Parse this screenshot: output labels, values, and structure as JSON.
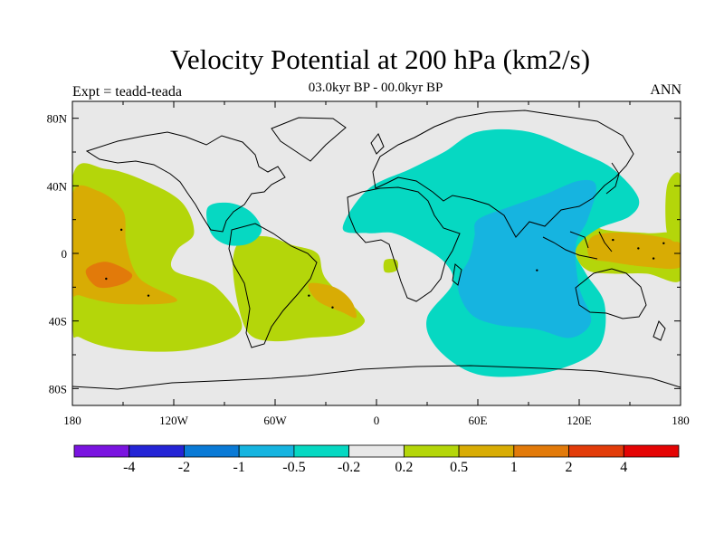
{
  "chart_data": {
    "type": "heatmap",
    "title": "Velocity Potential at 200 hPa (km2/s)",
    "subtitle": "03.0kyr BP - 00.0kyr BP",
    "left_label": "Expt = teadd-teada",
    "right_label": "ANN",
    "x_ticks": [
      "180",
      "120W",
      "60W",
      "0",
      "60E",
      "120E",
      "180"
    ],
    "x_tick_values": [
      -180,
      -120,
      -60,
      0,
      60,
      120,
      180
    ],
    "y_ticks": [
      "80N",
      "40N",
      "0",
      "40S",
      "80S"
    ],
    "y_tick_values": [
      80,
      40,
      0,
      -40,
      -80
    ],
    "xlim": [
      -180,
      180
    ],
    "ylim": [
      -90,
      90
    ],
    "colorbar": {
      "levels": [
        "-4",
        "-2",
        "-1",
        "-0.5",
        "-0.2",
        "0.2",
        "0.5",
        "1",
        "2",
        "4"
      ],
      "colors": [
        "#7a14e0",
        "#2424d6",
        "#0a7ad6",
        "#16b4e0",
        "#06d8c2",
        "#e8e8e8",
        "#b4d60a",
        "#d8ac04",
        "#e27a0a",
        "#e23c0a",
        "#e40404"
      ]
    },
    "land_color": "#e8e8e8",
    "regions": [
      {
        "name": "pacific-positive",
        "level_index": 6,
        "points": [
          [
            -180,
            45
          ],
          [
            -160,
            50
          ],
          [
            -135,
            42
          ],
          [
            -115,
            30
          ],
          [
            -108,
            12
          ],
          [
            -118,
            2
          ],
          [
            -120,
            -10
          ],
          [
            -95,
            -20
          ],
          [
            -80,
            -45
          ],
          [
            -110,
            -57
          ],
          [
            -150,
            -57
          ],
          [
            -175,
            -50
          ],
          [
            -180,
            -40
          ]
        ]
      },
      {
        "name": "pacific-positive-core",
        "level_index": 7,
        "points": [
          [
            -180,
            35
          ],
          [
            -165,
            37
          ],
          [
            -150,
            25
          ],
          [
            -148,
            5
          ],
          [
            -140,
            -15
          ],
          [
            -118,
            -28
          ],
          [
            -150,
            -30
          ],
          [
            -175,
            -25
          ],
          [
            -180,
            -20
          ]
        ]
      },
      {
        "name": "pacific-positive-max",
        "level_index": 8,
        "points": [
          [
            -172,
            -10
          ],
          [
            -160,
            -5
          ],
          [
            -145,
            -12
          ],
          [
            -150,
            -18
          ],
          [
            -165,
            -20
          ]
        ]
      },
      {
        "name": "south-america-positive",
        "level_index": 6,
        "points": [
          [
            -80,
            8
          ],
          [
            -65,
            10
          ],
          [
            -50,
            5
          ],
          [
            -35,
            0
          ],
          [
            -30,
            -15
          ],
          [
            -10,
            -35
          ],
          [
            -8,
            -42
          ],
          [
            -20,
            -48
          ],
          [
            -40,
            -50
          ],
          [
            -60,
            -52
          ],
          [
            -75,
            -48
          ],
          [
            -82,
            -30
          ],
          [
            -85,
            -5
          ]
        ]
      },
      {
        "name": "south-atlantic-positive-core",
        "level_index": 7,
        "points": [
          [
            -40,
            -18
          ],
          [
            -25,
            -20
          ],
          [
            -15,
            -28
          ],
          [
            -12,
            -38
          ],
          [
            -20,
            -35
          ],
          [
            -35,
            -28
          ]
        ]
      },
      {
        "name": "atlantic-small-positive",
        "level_index": 6,
        "points": [
          [
            5,
            -4
          ],
          [
            12,
            -4
          ],
          [
            12,
            -10
          ],
          [
            5,
            -11
          ]
        ]
      },
      {
        "name": "west-pacific-positive",
        "level_index": 6,
        "points": [
          [
            120,
            20
          ],
          [
            135,
            14
          ],
          [
            160,
            12
          ],
          [
            180,
            10
          ],
          [
            180,
            -16
          ],
          [
            160,
            -12
          ],
          [
            140,
            -12
          ],
          [
            125,
            -10
          ],
          [
            118,
            0
          ]
        ]
      },
      {
        "name": "west-pacific-positive-core",
        "level_index": 7,
        "points": [
          [
            128,
            10
          ],
          [
            150,
            12
          ],
          [
            180,
            6
          ],
          [
            180,
            -8
          ],
          [
            160,
            -8
          ],
          [
            138,
            -5
          ],
          [
            126,
            -2
          ]
        ]
      },
      {
        "name": "date-line-north-positive",
        "level_index": 6,
        "points": [
          [
            172,
            40
          ],
          [
            180,
            46
          ],
          [
            180,
            10
          ],
          [
            172,
            12
          ]
        ]
      },
      {
        "name": "caribbean-negative",
        "level_index": 4,
        "points": [
          [
            -100,
            27
          ],
          [
            -88,
            30
          ],
          [
            -75,
            25
          ],
          [
            -68,
            14
          ],
          [
            -75,
            6
          ],
          [
            -88,
            5
          ],
          [
            -98,
            12
          ]
        ]
      },
      {
        "name": "eastern-hemisphere-negative",
        "level_index": 4,
        "points": [
          [
            -20,
            15
          ],
          [
            -5,
            38
          ],
          [
            20,
            50
          ],
          [
            40,
            60
          ],
          [
            60,
            72
          ],
          [
            90,
            72
          ],
          [
            120,
            60
          ],
          [
            140,
            50
          ],
          [
            155,
            33
          ],
          [
            150,
            22
          ],
          [
            130,
            14
          ],
          [
            118,
            2
          ],
          [
            124,
            -12
          ],
          [
            135,
            -30
          ],
          [
            132,
            -55
          ],
          [
            110,
            -68
          ],
          [
            80,
            -73
          ],
          [
            55,
            -70
          ],
          [
            35,
            -55
          ],
          [
            30,
            -38
          ],
          [
            45,
            -18
          ],
          [
            40,
            -5
          ],
          [
            25,
            5
          ],
          [
            10,
            12
          ],
          [
            -5,
            12
          ]
        ]
      },
      {
        "name": "indian-ocean-negative-core",
        "level_index": 3,
        "points": [
          [
            60,
            20
          ],
          [
            80,
            28
          ],
          [
            100,
            35
          ],
          [
            120,
            43
          ],
          [
            130,
            40
          ],
          [
            125,
            20
          ],
          [
            118,
            5
          ],
          [
            120,
            -20
          ],
          [
            127,
            -40
          ],
          [
            115,
            -50
          ],
          [
            95,
            -45
          ],
          [
            70,
            -42
          ],
          [
            55,
            -35
          ],
          [
            48,
            -18
          ],
          [
            55,
            -3
          ],
          [
            58,
            10
          ]
        ]
      }
    ],
    "sample_points": [
      [
        -151,
        14
      ],
      [
        -135,
        -25
      ],
      [
        -160,
        -15
      ],
      [
        140,
        8
      ],
      [
        155,
        3
      ],
      [
        164,
        -3
      ],
      [
        170,
        6
      ],
      [
        -40,
        -25
      ],
      [
        -26,
        -32
      ],
      [
        95,
        -10
      ]
    ]
  }
}
